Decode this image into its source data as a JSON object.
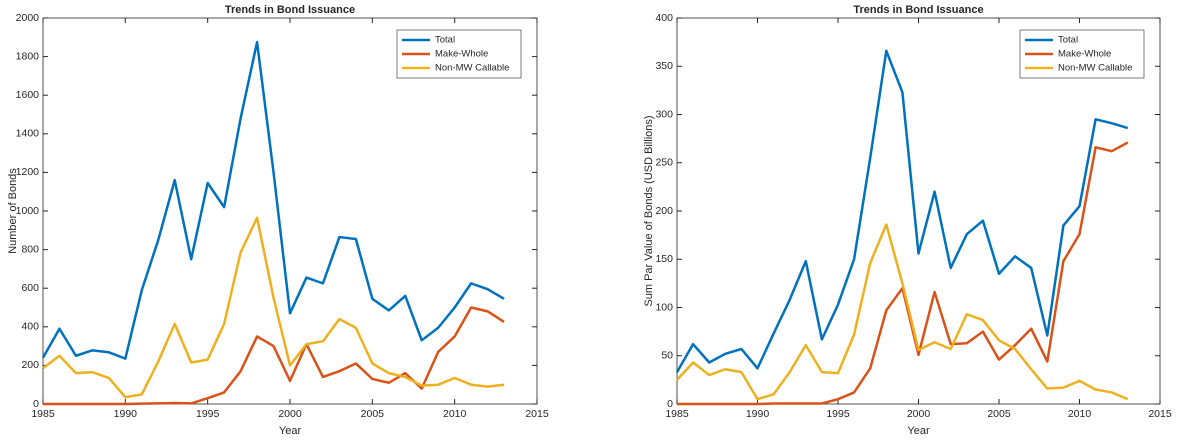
{
  "chart_data": [
    {
      "type": "line",
      "title": "Trends in Bond Issuance",
      "xlabel": "Year",
      "ylabel": "Number of Bonds",
      "x": [
        1985,
        1986,
        1987,
        1988,
        1989,
        1990,
        1991,
        1992,
        1993,
        1994,
        1995,
        1996,
        1997,
        1998,
        1999,
        2000,
        2001,
        2002,
        2003,
        2004,
        2005,
        2006,
        2007,
        2008,
        2009,
        2010,
        2011,
        2012,
        2013
      ],
      "series": [
        {
          "name": "Total",
          "color": "#0072BD",
          "values": [
            240,
            390,
            250,
            278,
            268,
            235,
            590,
            850,
            1160,
            750,
            1145,
            1020,
            1480,
            1875,
            1200,
            470,
            655,
            625,
            865,
            855,
            545,
            485,
            560,
            330,
            395,
            500,
            625,
            595,
            545
          ]
        },
        {
          "name": "Make-Whole",
          "color": "#D95319",
          "values": [
            0,
            0,
            0,
            0,
            0,
            0,
            2,
            3,
            5,
            3,
            30,
            60,
            170,
            350,
            300,
            120,
            310,
            140,
            170,
            210,
            130,
            110,
            160,
            80,
            270,
            350,
            500,
            480,
            425
          ]
        },
        {
          "name": "Non-MW Callable",
          "color": "#EDB120",
          "values": [
            185,
            250,
            160,
            165,
            135,
            35,
            50,
            220,
            415,
            215,
            230,
            415,
            785,
            965,
            550,
            200,
            310,
            325,
            440,
            395,
            210,
            160,
            140,
            95,
            100,
            135,
            100,
            90,
            100
          ]
        }
      ],
      "xlim": [
        1985,
        2015
      ],
      "xticks": [
        1985,
        1990,
        1995,
        2000,
        2005,
        2010,
        2015
      ],
      "ylim": [
        0,
        2000
      ],
      "yticks": [
        0,
        200,
        400,
        600,
        800,
        1000,
        1200,
        1400,
        1600,
        1800,
        2000
      ],
      "legend": "upper right"
    },
    {
      "type": "line",
      "title": "Trends in Bond Issuance",
      "xlabel": "Year",
      "ylabel": "Sum Par Value of Bonds (USD Billions)",
      "x": [
        1985,
        1986,
        1987,
        1988,
        1989,
        1990,
        1991,
        1992,
        1993,
        1994,
        1995,
        1996,
        1997,
        1998,
        1999,
        2000,
        2001,
        2002,
        2003,
        2004,
        2005,
        2006,
        2007,
        2008,
        2009,
        2010,
        2011,
        2012,
        2013
      ],
      "series": [
        {
          "name": "Total",
          "color": "#0072BD",
          "values": [
            33,
            62,
            43,
            52,
            57,
            37,
            73,
            108,
            148,
            67,
            103,
            150,
            255,
            366,
            323,
            156,
            220,
            141,
            176,
            190,
            135,
            153,
            141,
            71,
            185,
            205,
            295,
            291,
            286
          ]
        },
        {
          "name": "Make-Whole",
          "color": "#D95319",
          "values": [
            0,
            0,
            0,
            0,
            0,
            0,
            0.5,
            0.5,
            0.5,
            0.5,
            5,
            12,
            37,
            97,
            120,
            51,
            116,
            62,
            63,
            75,
            46,
            61,
            78,
            44,
            148,
            176,
            266,
            262,
            271
          ]
        },
        {
          "name": "Non-MW Callable",
          "color": "#EDB120",
          "values": [
            25,
            43,
            30,
            36,
            33,
            5,
            10,
            33,
            61,
            33,
            32,
            72,
            146,
            186,
            125,
            56,
            64,
            57,
            93,
            87,
            66,
            57,
            36,
            16,
            17,
            24,
            15,
            12,
            5
          ]
        }
      ],
      "xlim": [
        1985,
        2015
      ],
      "xticks": [
        1985,
        1990,
        1995,
        2000,
        2005,
        2010,
        2015
      ],
      "ylim": [
        0,
        400
      ],
      "yticks": [
        0,
        50,
        100,
        150,
        200,
        250,
        300,
        350,
        400
      ],
      "legend": "upper right"
    }
  ]
}
